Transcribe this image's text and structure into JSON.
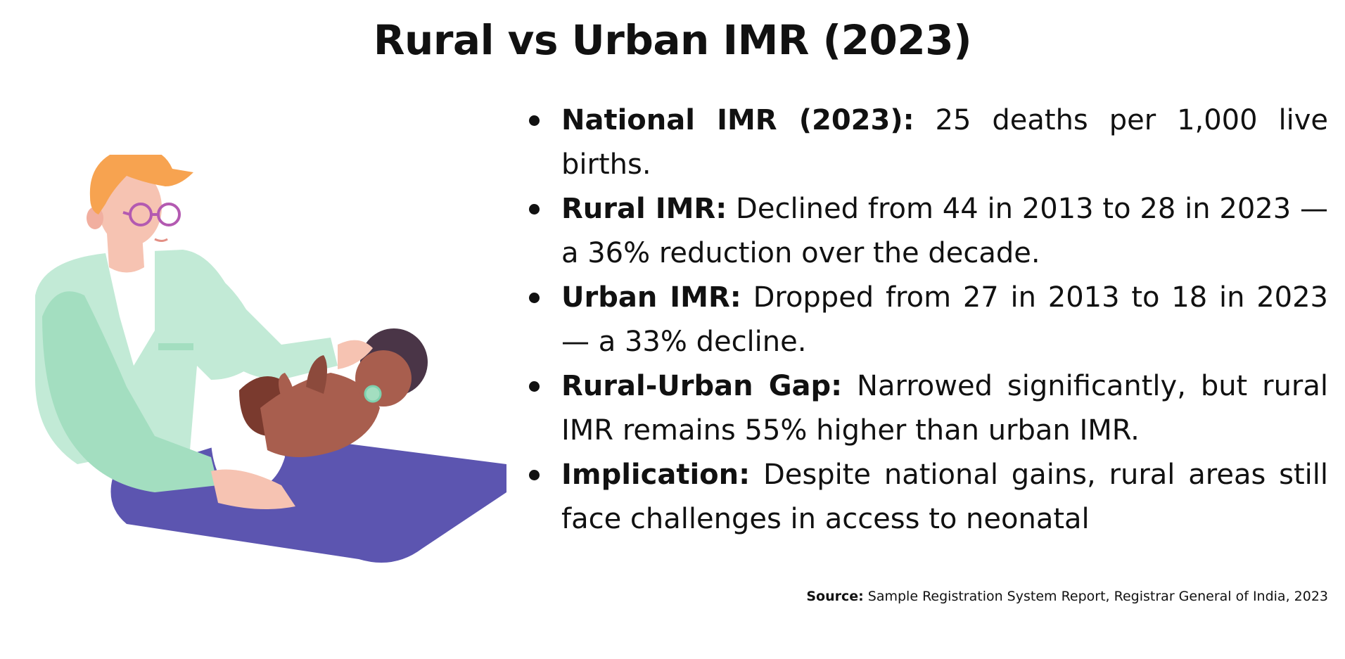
{
  "slide": {
    "title": "Rural vs Urban IMR (2023)"
  },
  "bullets": [
    {
      "term": "National IMR (2023):",
      "text": " 25 deaths per 1,000 live births."
    },
    {
      "term": "Rural IMR:",
      "text": " Declined from 44 in 2013 to 28 in 2023 — a 36% reduction over the decade."
    },
    {
      "term": "Urban IMR:",
      "text": " Dropped from 27 in 2013 to 18 in 2023 — a 33% decline."
    },
    {
      "term": "Rural-Urban Gap:",
      "text": " Narrowed significantly, but rural IMR remains 55% higher than urban IMR."
    },
    {
      "term": "Implication:",
      "text": " Despite national gains, rural areas still face challenges in access to neonatal"
    }
  ],
  "source": {
    "label": "Source:",
    "text": " Sample Registration System Report, Registrar General of India, 2023"
  },
  "illustration": {
    "subject": "doctor-examining-baby",
    "colors": {
      "hair": "#F7A350",
      "skin": "#F6C3B2",
      "coat": "#C2EAD6",
      "coat_shadow": "#A3DEC0",
      "mat": "#5C55B0",
      "baby_skin": "#A85E4E",
      "baby_hair": "#4A3547",
      "glasses": "#B35AB1"
    }
  }
}
